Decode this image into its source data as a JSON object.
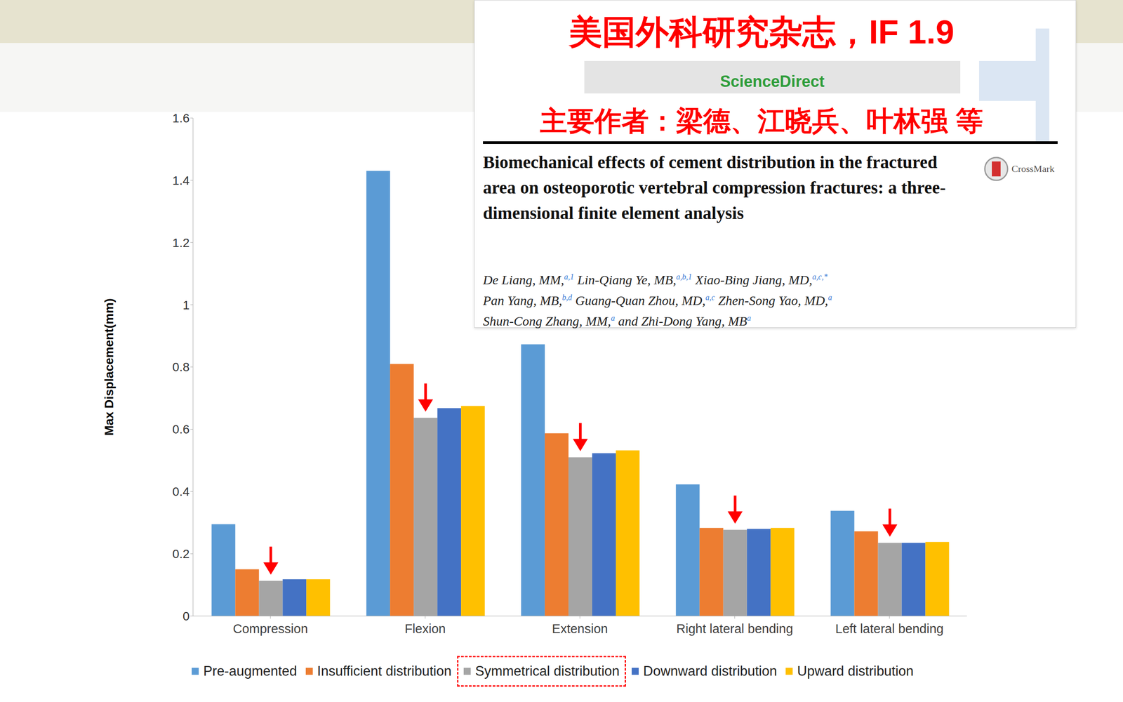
{
  "chart_data": {
    "type": "bar",
    "y_label": "Max Displacement(mm)",
    "categories": [
      "Compression",
      "Flexion",
      "Extension",
      "Right lateral bending",
      "Left lateral bending"
    ],
    "series": [
      {
        "name": "Pre-augmented",
        "color": "#5b9bd5",
        "values": [
          0.295,
          1.43,
          0.873,
          0.423,
          0.338
        ]
      },
      {
        "name": "Insufficient distribution",
        "color": "#ed7d31",
        "values": [
          0.15,
          0.81,
          0.587,
          0.283,
          0.272
        ]
      },
      {
        "name": "Symmetrical distribution",
        "color": "#a5a5a5",
        "marker": "arrow",
        "values": [
          0.113,
          0.637,
          0.51,
          0.277,
          0.235
        ]
      },
      {
        "name": "Downward distribution",
        "color": "#4472c4",
        "values": [
          0.118,
          0.668,
          0.523,
          0.28,
          0.235
        ]
      },
      {
        "name": "Upward distribution",
        "color": "#ffc000",
        "values": [
          0.118,
          0.675,
          0.532,
          0.283,
          0.238
        ]
      }
    ],
    "ylim": [
      0,
      1.6
    ],
    "yticks": [
      0,
      0.2,
      0.4,
      0.6,
      0.8,
      1,
      1.2,
      1.4,
      1.6
    ],
    "grid": false,
    "legend": "bottom"
  },
  "paper_card": {
    "journal": "美国外科研究杂志，IF 1.9",
    "main_authors": "主要作者：梁德、江晓兵、叶林强 等",
    "logo": "ScienceDirect",
    "badge": "CrossMark",
    "title": "Biomechanical effects of cement distribution in the fractured area on osteoporotic vertebral compression fractures: a three-dimensional finite element analysis",
    "author_lines": [
      [
        {
          "name": "De Liang, MM,",
          "sup": "a,1"
        },
        {
          "name": "Lin-Qiang Ye, MB,",
          "sup": "a,b,1"
        },
        {
          "name": "Xiao-Bing Jiang, MD,",
          "sup": "a,c,*"
        }
      ],
      [
        {
          "name": "Pan Yang, MB,",
          "sup": "b,d"
        },
        {
          "name": "Guang-Quan Zhou, MD,",
          "sup": "a,c"
        },
        {
          "name": "Zhen-Song Yao, MD,",
          "sup": "a"
        }
      ],
      [
        {
          "name": "Shun-Cong Zhang, MM,",
          "sup": "a"
        },
        {
          "name": "and Zhi-Dong Yang, MB",
          "sup": "a"
        }
      ]
    ]
  }
}
